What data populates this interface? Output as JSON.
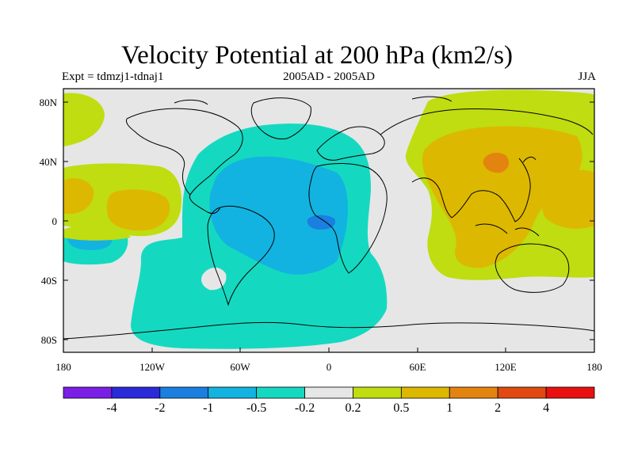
{
  "header": {
    "title": "Velocity Potential at 200 hPa (km2/s)",
    "left_sub": "Expt = tdmzj1-tdnaj1",
    "center_sub": "2005AD - 2005AD",
    "right_sub": "JJA"
  },
  "map": {
    "lat_labels": [
      "80N",
      "40N",
      "0",
      "40S",
      "80S"
    ],
    "lon_labels": [
      "180",
      "120W",
      "60W",
      "0",
      "60E",
      "120E",
      "180"
    ]
  },
  "colorbar": {
    "colors": [
      "#7a1fe6",
      "#2a2ad8",
      "#1a7fe0",
      "#12b3e0",
      "#14d9c0",
      "#e6e6e6",
      "#bfdd10",
      "#ddb800",
      "#e48410",
      "#e04a10",
      "#e81010"
    ],
    "labels": [
      "-4",
      "-2",
      "-1",
      "-0.5",
      "-0.2",
      "0.2",
      "0.5",
      "1",
      "2",
      "4"
    ]
  }
}
